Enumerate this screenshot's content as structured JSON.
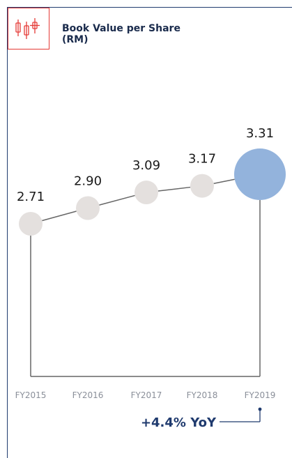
{
  "header": {
    "title_line1": "Book Value per Share",
    "title_line2": "(RM)",
    "icon": "candlestick-chart-icon",
    "accent_color": "#e53935",
    "frame_color": "#1f3a6e"
  },
  "chart_data": {
    "type": "bubble-line",
    "categories": [
      "FY2015",
      "FY2016",
      "FY2017",
      "FY2018",
      "FY2019"
    ],
    "values": [
      2.71,
      2.9,
      3.09,
      3.17,
      3.31
    ],
    "value_labels": [
      "2.71",
      "2.90",
      "3.09",
      "3.17",
      "3.31"
    ],
    "highlight_index": 4,
    "highlight_color": "#93b3dc",
    "point_color": "#e4e0de",
    "line_color": "#666666",
    "ylim": [
      2.5,
      3.5
    ],
    "annotation": "+4.4% YoY"
  }
}
